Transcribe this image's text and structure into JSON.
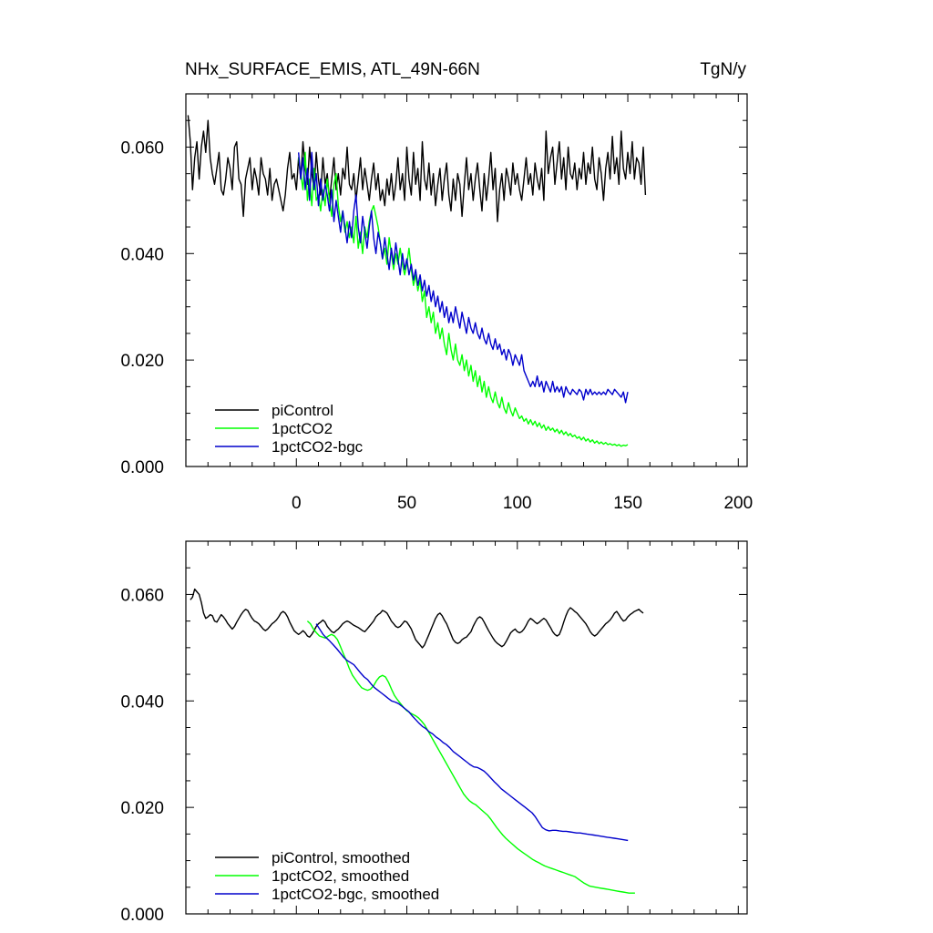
{
  "figure": {
    "title_left": "NHx_SURFACE_EMIS, ATL_49N-66N",
    "title_right": "TgN/y"
  },
  "colors": {
    "piControl": "#000000",
    "onepct": "#00ff00",
    "bgc": "#0000cc"
  },
  "chart_data": [
    {
      "type": "line",
      "title": "NHx_SURFACE_EMIS, ATL_49N-66N",
      "units": "TgN/y",
      "xlim": [
        -50,
        204
      ],
      "ylim": [
        0,
        0.07
      ],
      "x_ticks": [
        0,
        50,
        100,
        150,
        200
      ],
      "x_tick_labels": [
        "0",
        "50",
        "100",
        "150",
        "200"
      ],
      "y_ticks": [
        0,
        0.02,
        0.04,
        0.06
      ],
      "y_tick_labels": [
        "0.000",
        "0.020",
        "0.040",
        "0.060"
      ],
      "legend_position": "bottom-left",
      "series": [
        {
          "name": "piControl",
          "color": "#000000",
          "x_start": -49,
          "x_step": 1,
          "values": [
            0.066,
            0.061,
            0.052,
            0.058,
            0.061,
            0.054,
            0.06,
            0.063,
            0.059,
            0.065,
            0.058,
            0.055,
            0.053,
            0.056,
            0.059,
            0.052,
            0.051,
            0.054,
            0.058,
            0.056,
            0.052,
            0.06,
            0.061,
            0.054,
            0.053,
            0.047,
            0.054,
            0.056,
            0.058,
            0.052,
            0.056,
            0.054,
            0.051,
            0.058,
            0.055,
            0.054,
            0.051,
            0.056,
            0.05,
            0.053,
            0.054,
            0.052,
            0.05,
            0.048,
            0.051,
            0.056,
            0.059,
            0.054,
            0.055,
            0.052,
            0.058,
            0.054,
            0.061,
            0.056,
            0.053,
            0.06,
            0.055,
            0.052,
            0.059,
            0.054,
            0.051,
            0.058,
            0.053,
            0.055,
            0.05,
            0.054,
            0.058,
            0.052,
            0.055,
            0.051,
            0.056,
            0.054,
            0.06,
            0.053,
            0.052,
            0.055,
            0.05,
            0.054,
            0.058,
            0.052,
            0.056,
            0.053,
            0.05,
            0.054,
            0.057,
            0.052,
            0.055,
            0.05,
            0.052,
            0.049,
            0.054,
            0.051,
            0.055,
            0.05,
            0.053,
            0.058,
            0.052,
            0.055,
            0.05,
            0.06,
            0.054,
            0.051,
            0.059,
            0.053,
            0.056,
            0.05,
            0.061,
            0.054,
            0.052,
            0.057,
            0.051,
            0.055,
            0.049,
            0.053,
            0.056,
            0.05,
            0.054,
            0.057,
            0.051,
            0.048,
            0.054,
            0.05,
            0.055,
            0.053,
            0.047,
            0.053,
            0.058,
            0.052,
            0.055,
            0.05,
            0.054,
            0.057,
            0.052,
            0.048,
            0.055,
            0.05,
            0.054,
            0.059,
            0.052,
            0.056,
            0.046,
            0.052,
            0.055,
            0.05,
            0.056,
            0.054,
            0.051,
            0.057,
            0.053,
            0.055,
            0.052,
            0.05,
            0.054,
            0.058,
            0.053,
            0.055,
            0.051,
            0.057,
            0.054,
            0.052,
            0.056,
            0.05,
            0.063,
            0.055,
            0.058,
            0.06,
            0.053,
            0.057,
            0.061,
            0.054,
            0.058,
            0.052,
            0.06,
            0.055,
            0.054,
            0.057,
            0.052,
            0.056,
            0.054,
            0.059,
            0.053,
            0.057,
            0.055,
            0.06,
            0.054,
            0.052,
            0.058,
            0.055,
            0.05,
            0.056,
            0.059,
            0.054,
            0.062,
            0.055,
            0.058,
            0.053,
            0.063,
            0.056,
            0.054,
            0.059,
            0.055,
            0.061,
            0.054,
            0.058,
            0.057,
            0.053,
            0.06,
            0.051
          ],
          "smoothed": [
            0.059,
            0.0595,
            0.061,
            0.0605,
            0.06,
            0.0585,
            0.0565,
            0.0555,
            0.0558,
            0.0562,
            0.056,
            0.055,
            0.0548,
            0.0555,
            0.0562,
            0.0558,
            0.0552,
            0.0545,
            0.054,
            0.0535,
            0.054,
            0.0548,
            0.0555,
            0.0562,
            0.0568,
            0.0572,
            0.057,
            0.0562,
            0.0555,
            0.055,
            0.0548,
            0.0545,
            0.054,
            0.0535,
            0.0532,
            0.0535,
            0.054,
            0.0545,
            0.0548,
            0.0552,
            0.0558,
            0.0565,
            0.0568,
            0.0565,
            0.0558,
            0.0548,
            0.054,
            0.0532,
            0.0528,
            0.0525,
            0.0528,
            0.0532,
            0.0528,
            0.0522,
            0.052,
            0.0525,
            0.0532,
            0.054,
            0.0545,
            0.0548,
            0.0552,
            0.0548,
            0.054,
            0.0535,
            0.053,
            0.0528,
            0.0532,
            0.0535,
            0.054,
            0.0545,
            0.0548,
            0.055,
            0.0548,
            0.0545,
            0.0542,
            0.054,
            0.0538,
            0.0535,
            0.0532,
            0.053,
            0.0535,
            0.054,
            0.0545,
            0.055,
            0.0558,
            0.0562,
            0.0565,
            0.057,
            0.0568,
            0.0565,
            0.0558,
            0.055,
            0.0545,
            0.054,
            0.0538,
            0.054,
            0.0545,
            0.055,
            0.0548,
            0.0542,
            0.0535,
            0.0525,
            0.0515,
            0.051,
            0.0505,
            0.05,
            0.0505,
            0.0515,
            0.0525,
            0.0535,
            0.0545,
            0.0555,
            0.0562,
            0.0565,
            0.056,
            0.0552,
            0.0545,
            0.0535,
            0.0525,
            0.0515,
            0.051,
            0.0508,
            0.051,
            0.0515,
            0.0518,
            0.052,
            0.0525,
            0.053,
            0.054,
            0.0548,
            0.0555,
            0.0558,
            0.0555,
            0.0548,
            0.054,
            0.0532,
            0.0525,
            0.0518,
            0.0512,
            0.0508,
            0.0505,
            0.0502,
            0.0505,
            0.0512,
            0.052,
            0.0528,
            0.0532,
            0.0535,
            0.053,
            0.0528,
            0.053,
            0.0535,
            0.0542,
            0.055,
            0.0555,
            0.0552,
            0.0548,
            0.0545,
            0.0548,
            0.0552,
            0.0555,
            0.0552,
            0.0545,
            0.0538,
            0.053,
            0.0525,
            0.0522,
            0.0525,
            0.0535,
            0.0548,
            0.056,
            0.057,
            0.0575,
            0.0572,
            0.0568,
            0.0565,
            0.056,
            0.0555,
            0.055,
            0.0545,
            0.0538,
            0.053,
            0.0525,
            0.0522,
            0.0525,
            0.053,
            0.0535,
            0.054,
            0.0545,
            0.0548,
            0.0552,
            0.0558,
            0.0565,
            0.0568,
            0.0562,
            0.0555,
            0.055,
            0.0552,
            0.0558,
            0.0562,
            0.0565,
            0.0568,
            0.057,
            0.0572,
            0.0568,
            0.0565
          ]
        },
        {
          "name": "1pctCO2",
          "color": "#00ff00",
          "x_start": 1,
          "x_step": 1,
          "values": [
            0.058,
            0.055,
            0.052,
            0.059,
            0.05,
            0.054,
            0.049,
            0.056,
            0.05,
            0.051,
            0.048,
            0.052,
            0.049,
            0.054,
            0.05,
            0.047,
            0.053,
            0.055,
            0.049,
            0.046,
            0.048,
            0.044,
            0.046,
            0.043,
            0.045,
            0.042,
            0.047,
            0.041,
            0.044,
            0.04,
            0.045,
            0.043,
            0.046,
            0.048,
            0.049,
            0.047,
            0.045,
            0.042,
            0.039,
            0.041,
            0.038,
            0.043,
            0.04,
            0.037,
            0.04,
            0.038,
            0.041,
            0.038,
            0.036,
            0.038,
            0.041,
            0.037,
            0.034,
            0.036,
            0.033,
            0.035,
            0.031,
            0.033,
            0.028,
            0.03,
            0.027,
            0.029,
            0.025,
            0.027,
            0.024,
            0.026,
            0.023,
            0.021,
            0.025,
            0.022,
            0.02,
            0.023,
            0.02,
            0.019,
            0.021,
            0.018,
            0.02,
            0.017,
            0.019,
            0.016,
            0.018,
            0.015,
            0.017,
            0.014,
            0.016,
            0.013,
            0.015,
            0.013,
            0.012,
            0.014,
            0.012,
            0.011,
            0.013,
            0.011,
            0.01,
            0.012,
            0.0105,
            0.0095,
            0.011,
            0.01,
            0.009,
            0.0095,
            0.0085,
            0.009,
            0.008,
            0.0088,
            0.0078,
            0.0085,
            0.0075,
            0.0082,
            0.0072,
            0.0078,
            0.0068,
            0.0075,
            0.0068,
            0.0072,
            0.0065,
            0.007,
            0.0062,
            0.0068,
            0.006,
            0.0065,
            0.0058,
            0.0062,
            0.0056,
            0.0059,
            0.0053,
            0.0056,
            0.005,
            0.0055,
            0.0048,
            0.0052,
            0.0046,
            0.005,
            0.0044,
            0.0048,
            0.0043,
            0.0046,
            0.0042,
            0.0045,
            0.0041,
            0.0043,
            0.004,
            0.0042,
            0.0039,
            0.0041,
            0.0038,
            0.004,
            0.0039,
            0.0041
          ],
          "smoothed": [
            0.055,
            0.0545,
            0.0535,
            0.0528,
            0.0522,
            0.052,
            0.0518,
            0.0522,
            0.0525,
            0.0522,
            0.0515,
            0.0502,
            0.0488,
            0.0475,
            0.046,
            0.0448,
            0.044,
            0.0432,
            0.0425,
            0.0422,
            0.042,
            0.0422,
            0.0428,
            0.0438,
            0.0445,
            0.0448,
            0.0445,
            0.0435,
            0.0422,
            0.041,
            0.0402,
            0.0395,
            0.0388,
            0.0382,
            0.0378,
            0.0375,
            0.0372,
            0.0368,
            0.0362,
            0.0355,
            0.0345,
            0.0335,
            0.0325,
            0.0315,
            0.0305,
            0.0295,
            0.0285,
            0.0275,
            0.0265,
            0.0255,
            0.0245,
            0.0235,
            0.0225,
            0.0218,
            0.0212,
            0.0208,
            0.0205,
            0.02,
            0.0195,
            0.019,
            0.0185,
            0.0178,
            0.017,
            0.0162,
            0.0155,
            0.0148,
            0.0142,
            0.0137,
            0.0132,
            0.0127,
            0.0122,
            0.0118,
            0.0114,
            0.011,
            0.0106,
            0.0102,
            0.0099,
            0.0096,
            0.0093,
            0.009,
            0.0088,
            0.0086,
            0.0084,
            0.0082,
            0.008,
            0.0078,
            0.0076,
            0.0074,
            0.0072,
            0.007,
            0.0066,
            0.0062,
            0.0058,
            0.0055,
            0.0052,
            0.0051,
            0.005,
            0.0049,
            0.0048,
            0.0047,
            0.0046,
            0.0045,
            0.0044,
            0.0043,
            0.0042,
            0.0041,
            0.004,
            0.0039,
            0.0039,
            0.0039
          ],
          "smoothed_x_start": 5,
          "smoothed_x_step": 1.36
        },
        {
          "name": "1pctCO2-bgc",
          "color": "#0000cc",
          "x_start": 1,
          "x_step": 1,
          "values": [
            0.059,
            0.054,
            0.058,
            0.052,
            0.056,
            0.05,
            0.059,
            0.052,
            0.055,
            0.049,
            0.054,
            0.05,
            0.053,
            0.051,
            0.048,
            0.052,
            0.046,
            0.05,
            0.047,
            0.044,
            0.048,
            0.045,
            0.042,
            0.046,
            0.043,
            0.048,
            0.051,
            0.045,
            0.042,
            0.047,
            0.044,
            0.041,
            0.045,
            0.048,
            0.043,
            0.04,
            0.044,
            0.042,
            0.039,
            0.043,
            0.04,
            0.037,
            0.041,
            0.038,
            0.042,
            0.039,
            0.036,
            0.04,
            0.037,
            0.039,
            0.036,
            0.038,
            0.035,
            0.037,
            0.034,
            0.036,
            0.033,
            0.035,
            0.032,
            0.034,
            0.031,
            0.033,
            0.03,
            0.032,
            0.029,
            0.031,
            0.028,
            0.03,
            0.027,
            0.029,
            0.027,
            0.03,
            0.028,
            0.026,
            0.029,
            0.027,
            0.025,
            0.028,
            0.026,
            0.025,
            0.027,
            0.025,
            0.024,
            0.026,
            0.024,
            0.023,
            0.025,
            0.023,
            0.022,
            0.024,
            0.022,
            0.023,
            0.021,
            0.022,
            0.02,
            0.022,
            0.021,
            0.019,
            0.021,
            0.02,
            0.019,
            0.021,
            0.018,
            0.017,
            0.016,
            0.015,
            0.016,
            0.015,
            0.017,
            0.015,
            0.016,
            0.014,
            0.016,
            0.015,
            0.014,
            0.016,
            0.014,
            0.015,
            0.014,
            0.015,
            0.013,
            0.015,
            0.014,
            0.0135,
            0.0145,
            0.014,
            0.0135,
            0.0145,
            0.014,
            0.0125,
            0.0145,
            0.0135,
            0.0145,
            0.0135,
            0.014,
            0.0135,
            0.014,
            0.0135,
            0.014,
            0.0135,
            0.0145,
            0.014,
            0.0135,
            0.0145,
            0.014,
            0.0135,
            0.013,
            0.014,
            0.012,
            0.014
          ],
          "smoothed": [
            0.0545,
            0.0535,
            0.0525,
            0.0518,
            0.0512,
            0.0505,
            0.0498,
            0.049,
            0.0482,
            0.0476,
            0.0472,
            0.0468,
            0.046,
            0.0452,
            0.0445,
            0.044,
            0.0432,
            0.0425,
            0.042,
            0.0415,
            0.041,
            0.0405,
            0.04,
            0.0398,
            0.0395,
            0.039,
            0.0385,
            0.038,
            0.0372,
            0.0365,
            0.0358,
            0.0352,
            0.0348,
            0.0342,
            0.0338,
            0.0332,
            0.0328,
            0.0322,
            0.0318,
            0.0312,
            0.0305,
            0.03,
            0.0295,
            0.029,
            0.0285,
            0.028,
            0.0276,
            0.0275,
            0.0272,
            0.0268,
            0.0262,
            0.0255,
            0.0248,
            0.0242,
            0.0235,
            0.023,
            0.0225,
            0.022,
            0.0215,
            0.021,
            0.0205,
            0.02,
            0.0195,
            0.019,
            0.0182,
            0.0172,
            0.0162,
            0.0158,
            0.0156,
            0.0157,
            0.0157,
            0.0156,
            0.0155,
            0.0155,
            0.0154,
            0.0153,
            0.0152,
            0.0152,
            0.0151,
            0.015,
            0.0149,
            0.0148,
            0.0147,
            0.0146,
            0.0145,
            0.0144,
            0.0143,
            0.0142,
            0.0141,
            0.014,
            0.0139,
            0.0138
          ],
          "smoothed_x_start": 9,
          "smoothed_x_step": 1.55
        }
      ],
      "panels": [
        {
          "id": "raw",
          "legend": [
            "piControl",
            "1pctCO2",
            "1pctCO2-bgc"
          ]
        },
        {
          "id": "smoothed",
          "legend": [
            "piControl, smoothed",
            "1pctCO2, smoothed",
            "1pctCO2-bgc, smoothed"
          ]
        }
      ]
    }
  ]
}
